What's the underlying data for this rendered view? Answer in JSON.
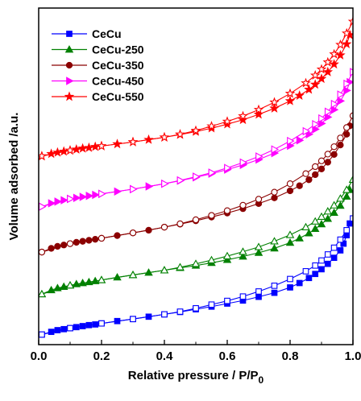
{
  "chart_data": {
    "type": "scatter",
    "xlabel": "Relative pressure / P/P",
    "xlabel_sub": "0",
    "ylabel": "Volume adsorbed /a.u.",
    "xlim": [
      0.0,
      1.0
    ],
    "ylim": [
      0,
      100
    ],
    "x_ticks": [
      "0.0",
      "0.2",
      "0.4",
      "0.6",
      "0.8",
      "1.0"
    ],
    "y_tick_labels_shown": false,
    "grid": false,
    "legend_position": "top-left",
    "note": "",
    "series": [
      {
        "name": "CeCu",
        "color": "#0000ff",
        "marker": "square",
        "adsorption": {
          "x": [
            0.01,
            0.04,
            0.06,
            0.08,
            0.1,
            0.12,
            0.14,
            0.16,
            0.18,
            0.2,
            0.25,
            0.3,
            0.35,
            0.4,
            0.45,
            0.5,
            0.55,
            0.6,
            0.65,
            0.7,
            0.75,
            0.8,
            0.83,
            0.86,
            0.88,
            0.9,
            0.92,
            0.94,
            0.96,
            0.97,
            0.98,
            0.99
          ],
          "y": [
            3.0,
            3.8,
            4.3,
            4.6,
            4.9,
            5.2,
            5.5,
            5.8,
            6.0,
            6.3,
            7.0,
            7.6,
            8.3,
            9.0,
            9.7,
            10.5,
            11.3,
            12.2,
            13.1,
            14.2,
            15.4,
            17.0,
            18.3,
            19.8,
            21.0,
            22.4,
            24.0,
            25.8,
            28.0,
            30.0,
            32.5,
            36.0
          ]
        },
        "desorption": {
          "x": [
            0.01,
            0.1,
            0.2,
            0.3,
            0.4,
            0.45,
            0.5,
            0.55,
            0.6,
            0.65,
            0.7,
            0.75,
            0.8,
            0.85,
            0.88,
            0.9,
            0.92,
            0.94,
            0.96,
            0.98,
            1.0
          ],
          "y": [
            3.0,
            4.9,
            6.3,
            7.6,
            9.0,
            9.8,
            10.8,
            11.9,
            13.0,
            14.3,
            15.8,
            17.5,
            19.5,
            21.8,
            23.5,
            25.0,
            26.8,
            28.8,
            31.2,
            34.0,
            37.5
          ]
        }
      },
      {
        "name": "CeCu-250",
        "color": "#008000",
        "marker": "triangle",
        "adsorption": {
          "x": [
            0.01,
            0.04,
            0.06,
            0.08,
            0.1,
            0.12,
            0.14,
            0.16,
            0.18,
            0.2,
            0.25,
            0.3,
            0.35,
            0.4,
            0.45,
            0.5,
            0.55,
            0.6,
            0.65,
            0.7,
            0.75,
            0.8,
            0.83,
            0.86,
            0.88,
            0.9,
            0.92,
            0.94,
            0.96,
            0.98,
            0.99
          ],
          "y": [
            15.0,
            16.2,
            16.8,
            17.2,
            17.6,
            18.0,
            18.3,
            18.6,
            18.9,
            19.2,
            20.0,
            20.7,
            21.4,
            22.1,
            22.8,
            23.5,
            24.3,
            25.2,
            26.2,
            27.3,
            28.6,
            30.3,
            31.6,
            33.1,
            34.4,
            35.8,
            37.4,
            39.2,
            41.3,
            44.0,
            46.0
          ]
        },
        "desorption": {
          "x": [
            0.01,
            0.1,
            0.2,
            0.3,
            0.4,
            0.45,
            0.5,
            0.55,
            0.6,
            0.65,
            0.7,
            0.75,
            0.8,
            0.85,
            0.88,
            0.9,
            0.92,
            0.94,
            0.96,
            0.98,
            1.0
          ],
          "y": [
            15.0,
            17.6,
            19.2,
            20.7,
            22.1,
            23.0,
            24.0,
            25.1,
            26.3,
            27.6,
            29.0,
            30.7,
            32.6,
            34.9,
            36.6,
            38.0,
            39.6,
            41.4,
            43.4,
            46.0,
            49.0
          ]
        }
      },
      {
        "name": "CeCu-350",
        "color": "#8b0000",
        "marker": "circle",
        "adsorption": {
          "x": [
            0.01,
            0.04,
            0.06,
            0.08,
            0.1,
            0.12,
            0.14,
            0.16,
            0.18,
            0.2,
            0.25,
            0.3,
            0.35,
            0.4,
            0.45,
            0.5,
            0.55,
            0.6,
            0.65,
            0.7,
            0.75,
            0.8,
            0.83,
            0.86,
            0.88,
            0.9,
            0.92,
            0.94,
            0.96,
            0.98,
            0.99
          ],
          "y": [
            27.5,
            28.6,
            29.2,
            29.6,
            30.0,
            30.4,
            30.7,
            31.0,
            31.3,
            31.6,
            32.4,
            33.2,
            34.0,
            34.9,
            35.8,
            36.8,
            37.9,
            39.1,
            40.4,
            41.9,
            43.6,
            45.7,
            47.2,
            49.0,
            50.5,
            52.2,
            54.2,
            56.5,
            59.3,
            62.5,
            65.0
          ]
        },
        "desorption": {
          "x": [
            0.01,
            0.1,
            0.2,
            0.3,
            0.4,
            0.45,
            0.5,
            0.55,
            0.6,
            0.65,
            0.7,
            0.75,
            0.8,
            0.85,
            0.88,
            0.9,
            0.92,
            0.94,
            0.96,
            0.98,
            1.0
          ],
          "y": [
            27.5,
            30.0,
            31.6,
            33.2,
            34.9,
            35.9,
            37.1,
            38.4,
            39.8,
            41.4,
            43.2,
            45.3,
            47.8,
            50.8,
            52.9,
            54.6,
            56.6,
            58.8,
            61.4,
            64.5,
            68.0
          ]
        }
      },
      {
        "name": "CeCu-450",
        "color": "#ff00ff",
        "marker": "triangle-right",
        "adsorption": {
          "x": [
            0.01,
            0.04,
            0.06,
            0.08,
            0.1,
            0.12,
            0.14,
            0.16,
            0.18,
            0.2,
            0.25,
            0.3,
            0.35,
            0.4,
            0.45,
            0.5,
            0.55,
            0.6,
            0.65,
            0.7,
            0.75,
            0.8,
            0.83,
            0.86,
            0.88,
            0.9,
            0.92,
            0.94,
            0.96,
            0.98,
            0.99
          ],
          "y": [
            41.0,
            42.0,
            42.5,
            42.9,
            43.3,
            43.6,
            43.9,
            44.2,
            44.5,
            44.8,
            45.5,
            46.2,
            47.0,
            47.8,
            48.7,
            49.7,
            50.8,
            52.0,
            53.4,
            55.0,
            56.9,
            59.1,
            60.7,
            62.5,
            64.0,
            65.7,
            67.6,
            69.8,
            72.4,
            75.5,
            78.0
          ]
        },
        "desorption": {
          "x": [
            0.01,
            0.1,
            0.2,
            0.3,
            0.4,
            0.45,
            0.5,
            0.55,
            0.6,
            0.65,
            0.7,
            0.75,
            0.8,
            0.85,
            0.88,
            0.9,
            0.92,
            0.94,
            0.96,
            0.98,
            1.0
          ],
          "y": [
            41.0,
            43.3,
            44.8,
            46.2,
            47.8,
            48.8,
            49.9,
            51.1,
            52.5,
            54.1,
            55.9,
            58.0,
            60.5,
            63.4,
            65.5,
            67.2,
            69.2,
            71.5,
            74.3,
            77.5,
            81.0
          ]
        }
      },
      {
        "name": "CeCu-550",
        "color": "#ff0000",
        "marker": "star",
        "adsorption": {
          "x": [
            0.01,
            0.04,
            0.06,
            0.08,
            0.1,
            0.12,
            0.14,
            0.16,
            0.18,
            0.2,
            0.25,
            0.3,
            0.35,
            0.4,
            0.45,
            0.5,
            0.55,
            0.6,
            0.65,
            0.7,
            0.75,
            0.8,
            0.83,
            0.86,
            0.88,
            0.9,
            0.92,
            0.94,
            0.96,
            0.98,
            0.99
          ],
          "y": [
            56.0,
            56.7,
            57.1,
            57.4,
            57.7,
            58.0,
            58.3,
            58.5,
            58.8,
            59.0,
            59.6,
            60.2,
            60.9,
            61.6,
            62.4,
            63.3,
            64.3,
            65.5,
            66.8,
            68.4,
            70.2,
            72.4,
            74.0,
            75.8,
            77.3,
            79.0,
            81.0,
            83.3,
            86.0,
            89.3,
            92.0
          ]
        },
        "desorption": {
          "x": [
            0.01,
            0.1,
            0.2,
            0.3,
            0.4,
            0.45,
            0.5,
            0.55,
            0.6,
            0.65,
            0.7,
            0.75,
            0.8,
            0.85,
            0.88,
            0.9,
            0.92,
            0.94,
            0.96,
            0.98,
            1.0
          ],
          "y": [
            56.0,
            57.7,
            59.0,
            60.2,
            61.6,
            62.5,
            63.6,
            64.9,
            66.3,
            67.9,
            69.8,
            72.0,
            74.6,
            77.7,
            80.0,
            81.8,
            83.9,
            86.3,
            89.1,
            92.5,
            96.0
          ]
        }
      }
    ]
  }
}
